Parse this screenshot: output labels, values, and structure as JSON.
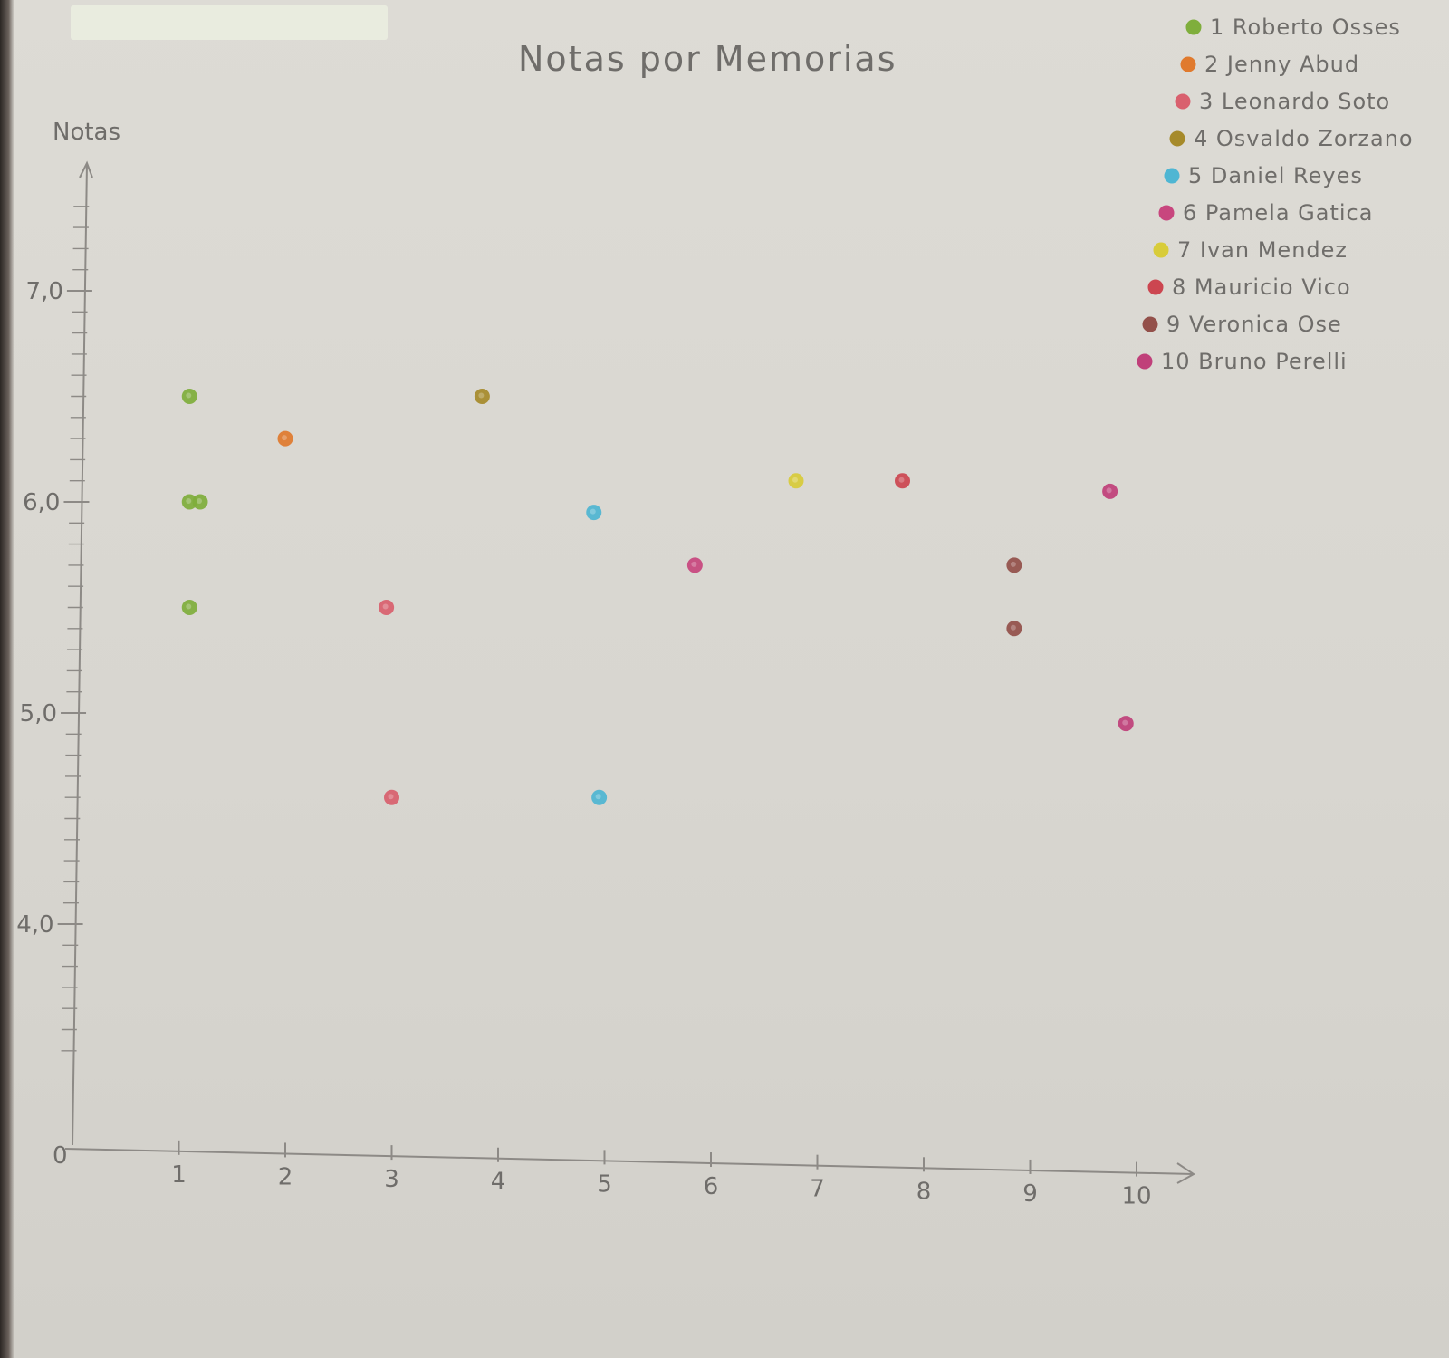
{
  "chart_data": {
    "type": "scatter",
    "title": "Notas por Memorias",
    "ylabel": "Notas",
    "xlabel": "",
    "origin_label": "0",
    "x_ticks": [
      1,
      2,
      3,
      4,
      5,
      6,
      7,
      8,
      9,
      10
    ],
    "x_tick_labels": [
      "1",
      "2",
      "3",
      "4",
      "5",
      "6",
      "7",
      "8",
      "9",
      "10"
    ],
    "y_ticks": [
      4.0,
      5.0,
      6.0,
      7.0
    ],
    "y_tick_labels": [
      "4,0",
      "5,0",
      "6,0",
      "7,0"
    ],
    "xlim": [
      0,
      10.8
    ],
    "ylim": [
      0,
      7.6
    ],
    "grid": false,
    "legend_position": "top-right",
    "series": [
      {
        "name": "1 Roberto Osses",
        "color": "#7fae3c",
        "points": [
          {
            "x": 1.1,
            "y": 6.5
          },
          {
            "x": 1.1,
            "y": 6.0
          },
          {
            "x": 1.2,
            "y": 6.0
          },
          {
            "x": 1.1,
            "y": 5.5
          }
        ]
      },
      {
        "name": "2 Jenny Abud",
        "color": "#e07a2e",
        "points": [
          {
            "x": 2.0,
            "y": 6.3
          }
        ]
      },
      {
        "name": "3 Leonardo Soto",
        "color": "#d9606e",
        "points": [
          {
            "x": 2.95,
            "y": 5.5
          },
          {
            "x": 3.0,
            "y": 4.6
          }
        ]
      },
      {
        "name": "4 Osvaldo Zorzano",
        "color": "#a68a2a",
        "points": [
          {
            "x": 3.85,
            "y": 6.5
          }
        ]
      },
      {
        "name": "5 Daniel Reyes",
        "color": "#4fb6d3",
        "points": [
          {
            "x": 4.9,
            "y": 5.95
          },
          {
            "x": 4.95,
            "y": 4.6
          }
        ]
      },
      {
        "name": "6 Pamela Gatica",
        "color": "#c8467e",
        "points": [
          {
            "x": 5.85,
            "y": 5.7
          }
        ]
      },
      {
        "name": "7 Ivan Mendez",
        "color": "#d8cc3a",
        "points": [
          {
            "x": 6.8,
            "y": 6.1
          }
        ]
      },
      {
        "name": "8 Mauricio Vico",
        "color": "#cc4650",
        "points": [
          {
            "x": 7.8,
            "y": 6.1
          }
        ]
      },
      {
        "name": "9 Veronica Ose",
        "color": "#93504a",
        "points": [
          {
            "x": 8.85,
            "y": 5.7
          },
          {
            "x": 8.85,
            "y": 5.4
          }
        ]
      },
      {
        "name": "10 Bruno Perelli",
        "color": "#c0407a",
        "points": [
          {
            "x": 9.75,
            "y": 6.05
          },
          {
            "x": 9.9,
            "y": 4.95
          }
        ]
      }
    ]
  }
}
